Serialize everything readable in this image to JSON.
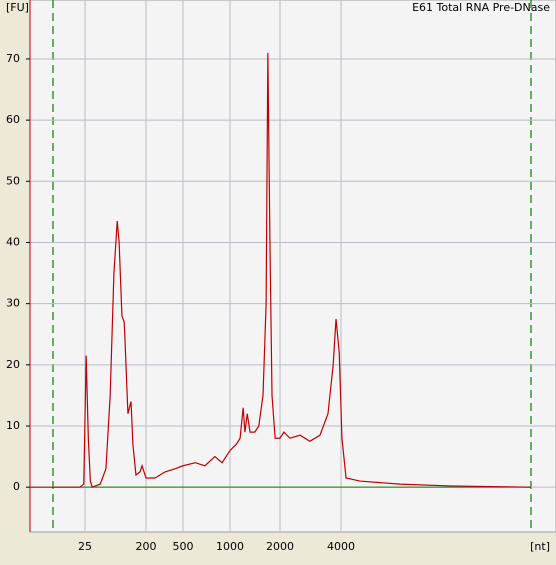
{
  "chart_data": {
    "type": "line",
    "title": "E61 Total RNA Pre-DNase",
    "ylabel": "[FU]",
    "xlabel": "[nt]",
    "x": [
      4,
      21,
      24,
      26,
      28,
      30,
      32,
      42,
      51,
      59,
      67,
      75,
      80,
      88,
      95,
      97,
      108,
      120,
      128,
      142,
      163,
      175,
      200,
      250,
      320,
      410,
      500,
      600,
      690,
      800,
      890,
      1000,
      1090,
      1150,
      1200,
      1230,
      1270,
      1320,
      1410,
      1490,
      1580,
      1650,
      1690,
      1740,
      1790,
      1870,
      2000,
      2090,
      2240,
      2510,
      2810,
      3150,
      3450,
      3660,
      3780,
      3920,
      4040,
      4220,
      4890,
      7480,
      12700,
      30000
    ],
    "series": [
      {
        "name": "E61 Total RNA Pre-DNase",
        "color": "#c00000",
        "values": [
          0,
          0,
          0.5,
          21.5,
          8,
          1,
          0,
          0.5,
          3,
          15,
          35,
          43.5,
          40,
          28,
          27,
          25,
          12,
          14,
          7,
          2,
          2.5,
          3.5,
          1.5,
          1.5,
          2.5,
          3,
          3.5,
          4,
          3.5,
          5,
          4,
          6,
          7,
          8,
          13,
          9,
          12,
          9,
          9,
          10,
          15,
          30,
          71,
          40,
          15,
          8,
          8,
          9,
          8,
          8.5,
          7.5,
          8.5,
          12,
          20,
          27.5,
          22,
          8,
          1.5,
          1,
          0.5,
          0.2,
          0
        ]
      }
    ],
    "xlim": [
      4,
      30000
    ],
    "xticks": [
      25,
      200,
      500,
      1000,
      2000,
      4000
    ],
    "ylim": [
      -7,
      78
    ],
    "yticks": [
      0,
      10,
      20,
      30,
      40,
      50,
      60,
      70
    ],
    "grid": true
  }
}
